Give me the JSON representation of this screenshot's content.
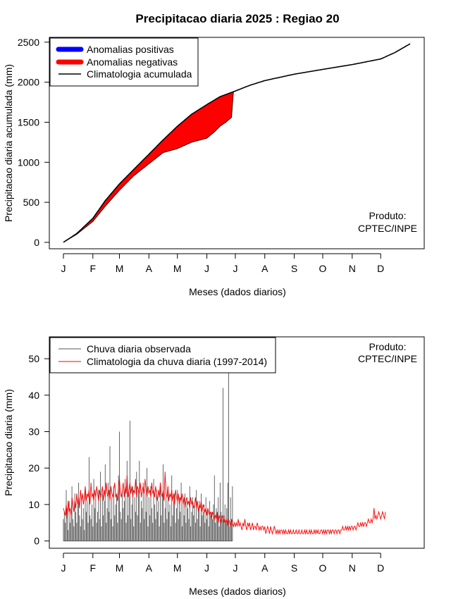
{
  "title": "Precipitacao diaria 2025 : Regiao 20",
  "chart_data": [
    {
      "type": "area",
      "xlabel": "Meses (dados diarios)",
      "ylabel": "Precipitacao diaria acumulada (mm)",
      "x_ticks": [
        "J",
        "F",
        "M",
        "A",
        "M",
        "J",
        "J",
        "A",
        "S",
        "O",
        "N",
        "D"
      ],
      "y_ticks": [
        0,
        500,
        1000,
        1500,
        2000,
        2500
      ],
      "xlim": [
        1,
        366
      ],
      "ylim": [
        -80,
        2560
      ],
      "legend_position": "top-left",
      "legend": [
        {
          "label": "Anomalias positivas",
          "color": "#0000ff"
        },
        {
          "label": "Anomalias negativas",
          "color": "#ff0000"
        },
        {
          "label": "Climatologia acumulada",
          "color": "#000000"
        }
      ],
      "annotation": [
        "Produto:",
        "CPTEC/INPE"
      ],
      "climatology_cumulative": {
        "day": [
          1,
          15,
          32,
          45,
          60,
          75,
          91,
          106,
          121,
          136,
          152,
          166,
          182,
          197,
          213,
          244,
          274,
          305,
          335,
          350,
          366
        ],
        "value": [
          0,
          110,
          300,
          520,
          730,
          910,
          1100,
          1280,
          1450,
          1600,
          1720,
          1820,
          1890,
          1960,
          2020,
          2100,
          2160,
          2220,
          2290,
          2370,
          2480
        ]
      },
      "observed_cumulative": {
        "day": [
          1,
          15,
          32,
          45,
          60,
          75,
          91,
          106,
          121,
          136,
          152,
          160,
          166,
          172,
          178,
          180
        ],
        "value": [
          0,
          100,
          260,
          450,
          650,
          830,
          980,
          1120,
          1170,
          1250,
          1300,
          1380,
          1450,
          1500,
          1560,
          1880
        ]
      }
    },
    {
      "type": "bar",
      "xlabel": "Meses (dados diarios)",
      "ylabel": "Precipitacao diaria (mm)",
      "x_ticks": [
        "J",
        "F",
        "M",
        "A",
        "M",
        "J",
        "J",
        "A",
        "S",
        "O",
        "N",
        "D"
      ],
      "y_ticks": [
        0,
        10,
        20,
        30,
        40,
        50
      ],
      "xlim": [
        1,
        366
      ],
      "ylim": [
        -2,
        56
      ],
      "legend_position": "top-left",
      "legend": [
        {
          "label": "Chuva diaria observada",
          "color": "#555555"
        },
        {
          "label": "Climatologia da chuva diaria (1997-2014)",
          "color": "#ff0000"
        }
      ],
      "annotation": [
        "Produto:",
        "CPTEC/INPE"
      ],
      "observed_daily": [
        6,
        8,
        5,
        14,
        9,
        3,
        11,
        5,
        7,
        15,
        6,
        4,
        13,
        8,
        5,
        10,
        16,
        7,
        4,
        12,
        6,
        9,
        3,
        14,
        8,
        11,
        5,
        23,
        7,
        6,
        10,
        4,
        17,
        9,
        12,
        5,
        8,
        14,
        6,
        19,
        4,
        13,
        7,
        11,
        21,
        5,
        9,
        16,
        8,
        26,
        6,
        12,
        4,
        15,
        7,
        10,
        13,
        5,
        18,
        30,
        8,
        6,
        14,
        9,
        11,
        17,
        5,
        22,
        7,
        13,
        33,
        6,
        10,
        15,
        4,
        12,
        8,
        19,
        7,
        14,
        22,
        5,
        11,
        9,
        16,
        6,
        13,
        8,
        20,
        4,
        12,
        7,
        15,
        9,
        5,
        17,
        10,
        6,
        14,
        8,
        11,
        4,
        16,
        7,
        13,
        21,
        5,
        9,
        12,
        6,
        15,
        8,
        10,
        4,
        18,
        7,
        11,
        13,
        5,
        9,
        14,
        6,
        12,
        8,
        16,
        4,
        10,
        7,
        13,
        5,
        11,
        9,
        6,
        15,
        4,
        8,
        12,
        7,
        10,
        5,
        14,
        6,
        9,
        11,
        4,
        13,
        7,
        8,
        10,
        5,
        12,
        6,
        9,
        4,
        11,
        7,
        8,
        6,
        10,
        18,
        5,
        9,
        7,
        12,
        4,
        16,
        8,
        6,
        42,
        7,
        10,
        5,
        9,
        16,
        48,
        4,
        12,
        6,
        15
      ],
      "climatology_daily": [
        9,
        8,
        7,
        10,
        6,
        11,
        8,
        9,
        7,
        12,
        10,
        8,
        11,
        9,
        13,
        10,
        12,
        9,
        14,
        11,
        13,
        10,
        12,
        15,
        11,
        13,
        12,
        14,
        10,
        16,
        12,
        13,
        11,
        14,
        12,
        15,
        13,
        11,
        14,
        12,
        13,
        15,
        11,
        14,
        12,
        16,
        13,
        12,
        14,
        11,
        15,
        13,
        12,
        14,
        16,
        12,
        13,
        11,
        15,
        17,
        13,
        12,
        14,
        16,
        12,
        15,
        13,
        18,
        12,
        14,
        16,
        13,
        15,
        12,
        14,
        13,
        17,
        12,
        15,
        14,
        13,
        16,
        12,
        14,
        15,
        13,
        17,
        14,
        12,
        15,
        13,
        14,
        12,
        16,
        13,
        14,
        12,
        15,
        13,
        11,
        14,
        12,
        16,
        13,
        12,
        14,
        11,
        19,
        13,
        12,
        15,
        11,
        13,
        12,
        14,
        11,
        13,
        10,
        14,
        12,
        11,
        13,
        10,
        12,
        11,
        13,
        10,
        12,
        9,
        11,
        12,
        10,
        11,
        9,
        12,
        10,
        11,
        9,
        10,
        12,
        9,
        11,
        8,
        10,
        9,
        11,
        8,
        10,
        9,
        8,
        9,
        7,
        9,
        8,
        7,
        8,
        6,
        8,
        7,
        6,
        7,
        6,
        8,
        5,
        7,
        6,
        5,
        7,
        6,
        5,
        6,
        5,
        6,
        4,
        6,
        5,
        4,
        6,
        5,
        4,
        5,
        4,
        5,
        4,
        6,
        4,
        5,
        4,
        3,
        5,
        4,
        6,
        4,
        3,
        5,
        4,
        5,
        3,
        4,
        5,
        3,
        4,
        4,
        3,
        5,
        4,
        3,
        4,
        3,
        4,
        4,
        3,
        4,
        2,
        3,
        4,
        3,
        2,
        4,
        3,
        2,
        3,
        4,
        3,
        2,
        3,
        2,
        3,
        2,
        3,
        3,
        2,
        3,
        2,
        3,
        2,
        2,
        3,
        2,
        3,
        2,
        2,
        3,
        2,
        2,
        3,
        2,
        2,
        3,
        2,
        2,
        3,
        2,
        2,
        3,
        2,
        3,
        2,
        2,
        3,
        2,
        3,
        2,
        2,
        3,
        2,
        3,
        2,
        3,
        2,
        2,
        3,
        3,
        2,
        3,
        2,
        3,
        2,
        3,
        3,
        2,
        3,
        2,
        3,
        3,
        2,
        3,
        3,
        2,
        3,
        3,
        2,
        3,
        3,
        4,
        3,
        3,
        4,
        3,
        4,
        3,
        4,
        3,
        4,
        4,
        3,
        4,
        4,
        3,
        4,
        5,
        4,
        4,
        5,
        4,
        5,
        4,
        5,
        5,
        4,
        5,
        6,
        5,
        5,
        6,
        5,
        6,
        9,
        6,
        7,
        6,
        7,
        8,
        7,
        6,
        7,
        8,
        7,
        6,
        8
      ]
    }
  ]
}
